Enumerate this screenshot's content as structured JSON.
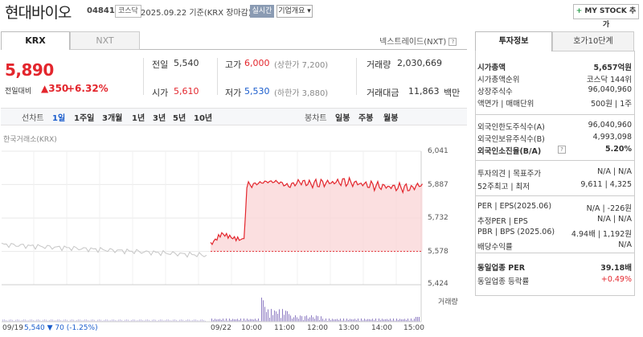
{
  "header": {
    "stock_name": "현대바이오",
    "stock_code": "048410",
    "market_badge": "코스닥",
    "date_text": "2025.09.22  기준(KRX 장마감)",
    "live_button": "실시간",
    "company_info_button": "기업개요 ▾",
    "mystock_button": "MY STOCK 추가",
    "mystock_plus": "+"
  },
  "tabs": {
    "krx": "KRX",
    "nxt": "NXT",
    "nextrade": "넥스트레이드(NXT)",
    "help": "?"
  },
  "price": {
    "current": "5,890",
    "change_label": "전일대비",
    "change_arrow": "▲",
    "change_value": "350",
    "change_pct": "+6.32%"
  },
  "quote": {
    "prev_label": "전일",
    "prev_value": "5,540",
    "high_label": "고가",
    "high_value": "6,000",
    "high_limit": "(상한가 7,200)",
    "volume_label": "거래량",
    "volume_value": "2,030,669",
    "open_label": "시가",
    "open_value": "5,610",
    "low_label": "저가",
    "low_value": "5,530",
    "low_limit": "(하한가 3,880)",
    "amount_label": "거래대금",
    "amount_value": "11,863",
    "amount_unit": "백만"
  },
  "period": {
    "line_label": "선차트",
    "tabs": [
      "1일",
      "1주일",
      "3개월",
      "1년",
      "3년",
      "5년",
      "10년"
    ],
    "candle_label": "봉차트",
    "candle_tabs": [
      "일봉",
      "주봉",
      "월봉"
    ]
  },
  "chart_meta": {
    "source": "한국거래소(KRX)",
    "volume_label": "거래량",
    "y_ticks": [
      "6,041",
      "5,887",
      "5,732",
      "5,578",
      "5,424"
    ],
    "x_ticks": [
      "09/19",
      "09/22",
      "10:00",
      "11:00",
      "12:00",
      "13:00",
      "14:00",
      "15:00"
    ],
    "prev_day_text": "5,540 ▼ 70 (-1.25%)"
  },
  "chart_data": {
    "type": "line",
    "series": [
      {
        "x": [
          "09/19 09:00",
          "09/19 10:00",
          "09/19 11:00",
          "09/19 12:00",
          "09/19 13:00",
          "09/19 14:00",
          "09/19 15:00",
          "09/22 09:00",
          "09/22 09:20",
          "09/22 09:40",
          "09/22 10:00",
          "09/22 10:05",
          "09/22 10:20",
          "09/22 10:40",
          "09/22 11:00",
          "09/22 11:20",
          "09/22 11:40",
          "09/22 12:00",
          "09/22 12:30",
          "09/22 13:00",
          "09/22 13:30",
          "09/22 14:00",
          "09/22 14:30",
          "09/22 15:00",
          "09/22 15:20"
        ],
        "y": [
          5610,
          5600,
          5595,
          5590,
          5585,
          5575,
          5540,
          5610,
          5660,
          5640,
          5630,
          5880,
          5890,
          5900,
          5900,
          5880,
          5900,
          5890,
          5895,
          5900,
          5890,
          5880,
          5875,
          5870,
          5890
        ]
      }
    ],
    "ylim": [
      5424,
      6041
    ],
    "base_value": 5578,
    "colors": {
      "line": "#e3262d",
      "fill": "#f9d4d6",
      "prev_line": "#c6c6c6",
      "volume": "#8e7cc3"
    }
  },
  "right_panel": {
    "tab_invest": "투자정보",
    "tab_orderbook": "호가10단계",
    "rows1": [
      {
        "label": "시가총액",
        "value": "5,657억원",
        "bold": true
      },
      {
        "label": "시가총액순위",
        "value": "코스닥  144위"
      },
      {
        "label": "상장주식수",
        "value": "96,040,960"
      },
      {
        "label": "액면가 | 매매단위",
        "value": "500원 | 1주"
      }
    ],
    "rows2": [
      {
        "label": "외국인한도주식수(A)",
        "value": "96,040,960"
      },
      {
        "label": "외국인보유주식수(B)",
        "value": "4,993,098"
      },
      {
        "label": "외국인소진율(B/A)",
        "value": "5.20%",
        "bold": true,
        "help": "?"
      }
    ],
    "rows3": [
      {
        "label": "투자의견 | 목표주가",
        "value": "N/A | N/A"
      },
      {
        "label": "52주최고 | 최저",
        "value": "9,611 | 4,325"
      }
    ],
    "rows4": [
      {
        "label": "PER | EPS(2025.06)",
        "value": "N/A | -226원"
      },
      {
        "label": "추정PER | EPS",
        "value": "N/A | N/A"
      },
      {
        "label": "PBR | BPS (2025.06)",
        "value": "4.94배 | 1,192원"
      },
      {
        "label": "배당수익률",
        "value": "N/A"
      }
    ],
    "rows5": [
      {
        "label": "동일업종 PER",
        "value": "39.18배",
        "bold": true
      },
      {
        "label": "동일업종 등락률",
        "value": "+0.49%",
        "red": true
      }
    ]
  }
}
